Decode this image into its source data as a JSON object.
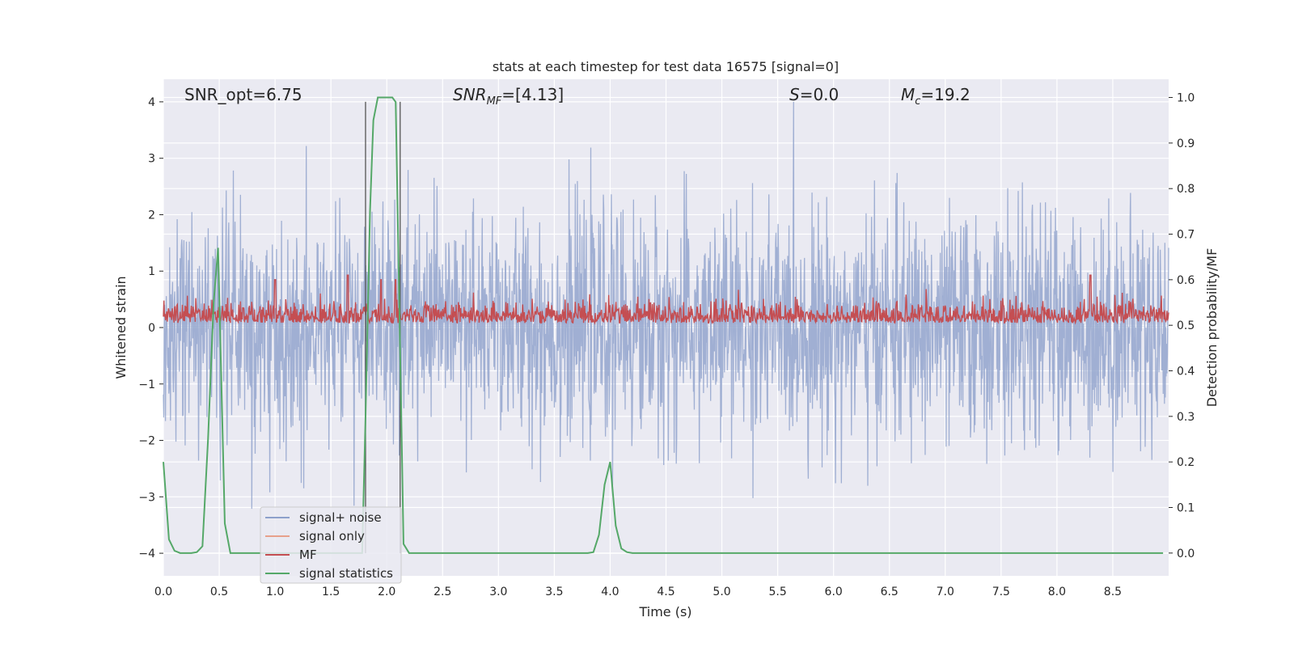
{
  "chart_data": {
    "type": "line",
    "title": "stats at each timestep for test data 16575 [signal=0]",
    "xlabel": "Time (s)",
    "ylabel_left": "Whitened strain",
    "ylabel_right": "Detection probability/MF",
    "xlim": [
      0.0,
      9.0
    ],
    "ylim_left": [
      -4.4,
      4.4
    ],
    "ylim_right": [
      -0.05,
      1.04
    ],
    "xticks": [
      "0.0",
      "0.5",
      "1.0",
      "1.5",
      "2.0",
      "2.5",
      "3.0",
      "3.5",
      "4.0",
      "4.5",
      "5.0",
      "5.5",
      "6.0",
      "6.5",
      "7.0",
      "7.5",
      "8.0",
      "8.5"
    ],
    "yticks_left": [
      "−4",
      "−3",
      "−2",
      "−1",
      "0",
      "1",
      "2",
      "3",
      "4"
    ],
    "yticks_right": [
      "0.0",
      "0.1",
      "0.2",
      "0.3",
      "0.4",
      "0.5",
      "0.6",
      "0.7",
      "0.8",
      "0.9",
      "1.0"
    ],
    "grid": true,
    "legend_position": "lower-left",
    "annotations": {
      "snr_opt": "SNR_opt=6.75",
      "snr_mf_main": "SNR",
      "snr_mf_sub": "MF",
      "snr_mf_value": "=[4.13]",
      "s_main": "S",
      "s_value": "=0.0",
      "mc_main": "M",
      "mc_sub": "c",
      "mc_value": "=19.2"
    },
    "series": [
      {
        "name": "signal+ noise",
        "color": "#8da0cb",
        "style": "dense noise between about ±2.5, peaks up to 4.0 near t=6.8",
        "envelope_left": [
          -2.5,
          2.5
        ]
      },
      {
        "name": "signal only",
        "color": "#e7a18b",
        "values": []
      },
      {
        "name": "MF",
        "color": "#c44e52",
        "envelope_right": [
          0.5,
          0.57
        ],
        "peaks_right": [
          [
            1.0,
            0.6
          ],
          [
            1.65,
            0.61
          ],
          [
            1.95,
            0.6
          ],
          [
            2.08,
            0.6
          ],
          [
            8.3,
            0.61
          ]
        ]
      },
      {
        "name": "signal statistics",
        "color": "#55a868",
        "x": [
          0.0,
          0.05,
          0.1,
          0.15,
          0.2,
          0.25,
          0.3,
          0.35,
          0.4,
          0.45,
          0.49,
          0.55,
          0.6,
          0.65,
          0.7,
          1.75,
          1.78,
          1.81,
          1.85,
          1.88,
          1.92,
          1.95,
          2.0,
          2.05,
          2.08,
          2.13,
          2.15,
          2.2,
          2.25,
          2.3,
          3.8,
          3.85,
          3.9,
          3.95,
          4.0,
          4.05,
          4.1,
          4.15,
          4.2,
          4.3,
          4.5,
          5.0,
          6.0,
          7.0,
          8.0,
          8.95
        ],
        "values": [
          0.2,
          0.03,
          0.005,
          0.0,
          0.0,
          0.0,
          0.002,
          0.015,
          0.25,
          0.55,
          0.67,
          0.065,
          0.0,
          0.0,
          0.0,
          0.0,
          0.0,
          0.3,
          0.75,
          0.95,
          1.0,
          1.0,
          1.0,
          1.0,
          0.99,
          0.3,
          0.02,
          0.0,
          0.0,
          0.0,
          0.0,
          0.002,
          0.04,
          0.15,
          0.2,
          0.06,
          0.01,
          0.002,
          0.0,
          0.0,
          0.0,
          0.0,
          0.0,
          0.0,
          0.0,
          0.0
        ]
      }
    ],
    "vertical_lines_x": [
      1.81,
      2.12
    ]
  },
  "colors": {
    "background": "#eaeaf2",
    "grid": "#ffffff",
    "noise": "#8da0cb",
    "mf": "#c44e52",
    "stat": "#55a868",
    "signal_only": "#e7a18b",
    "vline": "#555555"
  }
}
